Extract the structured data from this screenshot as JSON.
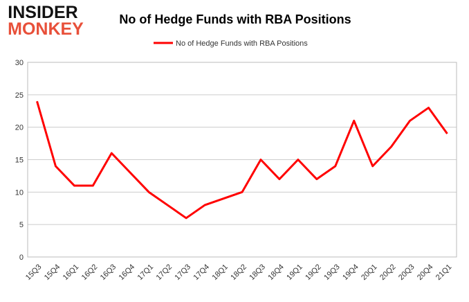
{
  "logo": {
    "top": "INSIDER",
    "bottom": "MONKEY"
  },
  "chart_data": {
    "type": "line",
    "title": "No of Hedge Funds with RBA Positions",
    "categories": [
      "15Q3",
      "15Q4",
      "16Q1",
      "16Q2",
      "16Q3",
      "16Q4",
      "17Q1",
      "17Q2",
      "17Q3",
      "17Q4",
      "18Q1",
      "18Q2",
      "18Q3",
      "18Q4",
      "19Q1",
      "19Q2",
      "19Q3",
      "19Q4",
      "20Q1",
      "20Q2",
      "20Q3",
      "20Q4",
      "21Q1"
    ],
    "series": [
      {
        "name": "No of Hedge Funds with RBA Positions",
        "color": "#ff0000",
        "values": [
          24,
          14,
          11,
          11,
          16,
          13,
          10,
          8,
          6,
          8,
          9,
          10,
          15,
          12,
          15,
          12,
          14,
          21,
          14,
          17,
          21,
          23,
          19
        ]
      }
    ],
    "ylim": [
      0,
      30
    ],
    "yticks": [
      0,
      5,
      10,
      15,
      20,
      25,
      30
    ],
    "grid": true,
    "legend": "top"
  }
}
